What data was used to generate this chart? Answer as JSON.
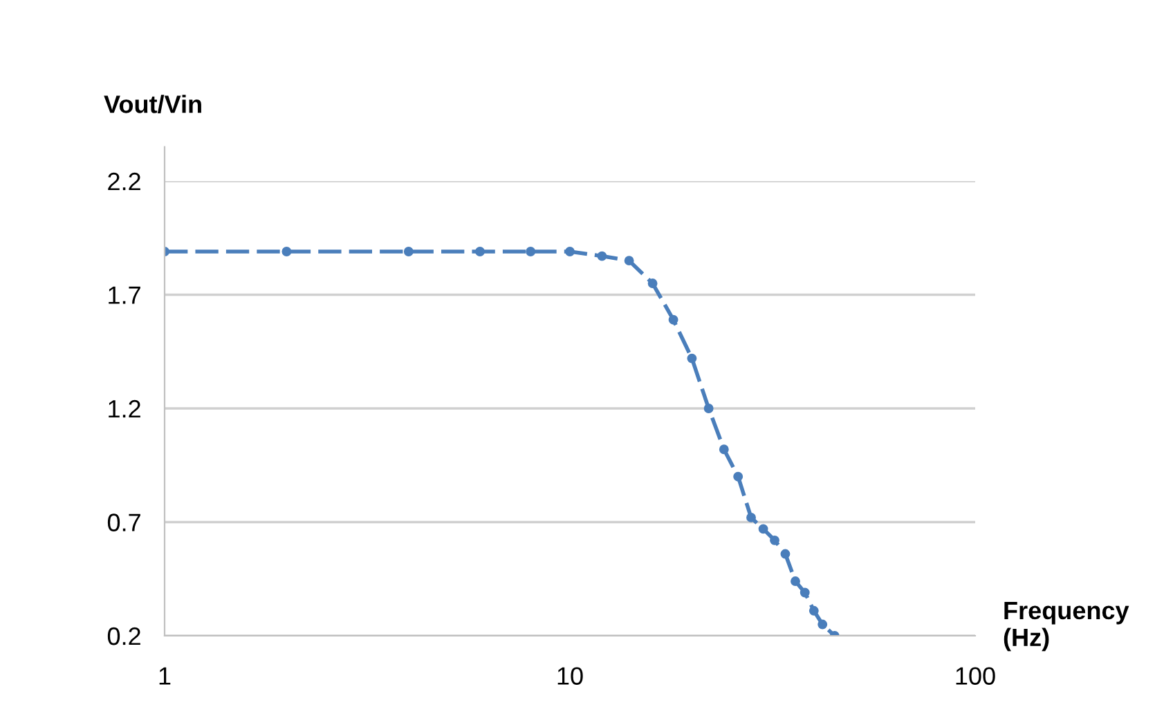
{
  "chart_data": {
    "type": "line",
    "xlabel": "Frequency\n(Hz)",
    "ylabel": "Vout/Vin",
    "x": [
      1,
      2,
      4,
      6,
      8,
      10,
      12,
      14,
      16,
      18,
      20,
      22,
      24,
      26,
      28,
      30,
      32,
      34,
      36,
      38,
      40,
      42,
      45
    ],
    "series": [
      {
        "color": "#4a7ebb",
        "values": [
          1.89,
          1.89,
          1.89,
          1.89,
          1.89,
          1.89,
          1.87,
          1.85,
          1.75,
          1.59,
          1.42,
          1.2,
          1.02,
          0.9,
          0.72,
          0.67,
          0.62,
          0.56,
          0.44,
          0.39,
          0.31,
          0.25,
          0.2
        ]
      }
    ],
    "log": "x",
    "xlim": [
      1,
      100
    ],
    "xticks": [
      1,
      10,
      100
    ],
    "ylim": [
      0.2,
      2.2
    ],
    "yticks": [
      0.2,
      0.7,
      1.2,
      1.7,
      2.2
    ],
    "grid": "y",
    "marker": "circle",
    "line_style": "dashed"
  }
}
